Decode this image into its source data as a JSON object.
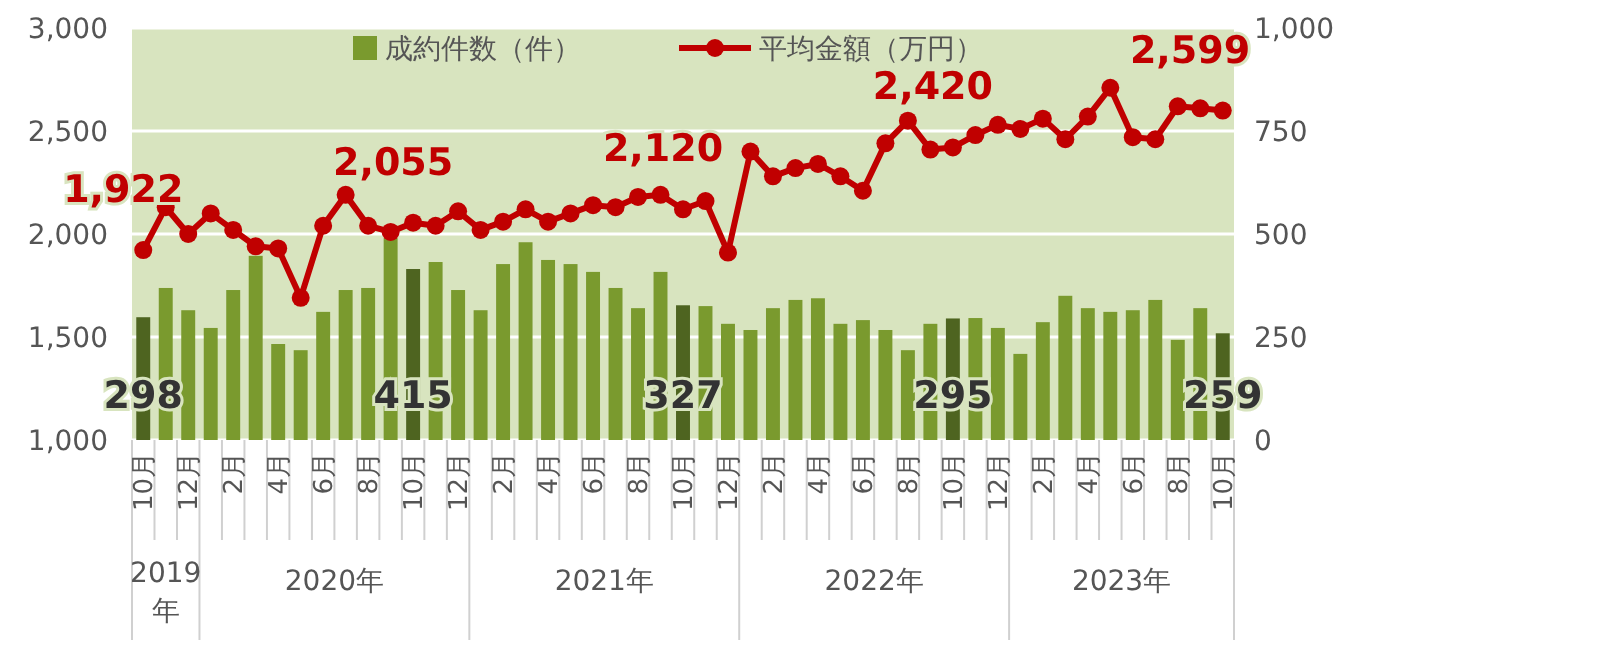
{
  "chart_data": {
    "type": "bar",
    "categories": [
      "10月",
      null,
      "12月",
      null,
      "2月",
      null,
      "4月",
      null,
      "6月",
      null,
      "8月",
      null,
      "10月",
      null,
      "12月",
      null,
      "2月",
      null,
      "4月",
      null,
      "6月",
      null,
      "8月",
      null,
      "10月",
      null,
      "12月",
      null,
      "2月",
      null,
      "4月",
      null,
      "6月",
      null,
      "8月",
      null,
      "10月",
      null,
      "12月",
      null,
      "2月",
      null,
      "4月",
      null,
      "6月",
      null,
      "8月",
      null,
      "10月"
    ],
    "series": [
      {
        "name": "成約件数（件）",
        "axis": "y2",
        "color": "#7a9a2e",
        "colors": [
          "#4e6420",
          "#7a9a2e",
          "#7a9a2e",
          "#7a9a2e",
          "#7a9a2e",
          "#7a9a2e",
          "#7a9a2e",
          "#7a9a2e",
          "#7a9a2e",
          "#7a9a2e",
          "#7a9a2e",
          "#7a9a2e",
          "#4e6420",
          "#7a9a2e",
          "#7a9a2e",
          "#7a9a2e",
          "#7a9a2e",
          "#7a9a2e",
          "#7a9a2e",
          "#7a9a2e",
          "#7a9a2e",
          "#7a9a2e",
          "#7a9a2e",
          "#7a9a2e",
          "#4e6420",
          "#7a9a2e",
          "#7a9a2e",
          "#7a9a2e",
          "#7a9a2e",
          "#7a9a2e",
          "#7a9a2e",
          "#7a9a2e",
          "#7a9a2e",
          "#7a9a2e",
          "#7a9a2e",
          "#7a9a2e",
          "#4e6420",
          "#7a9a2e",
          "#7a9a2e",
          "#7a9a2e",
          "#7a9a2e",
          "#7a9a2e",
          "#7a9a2e",
          "#7a9a2e",
          "#7a9a2e",
          "#7a9a2e",
          "#7a9a2e",
          "#7a9a2e",
          "#4e6420"
        ],
        "values": [
          298,
          369,
          315,
          272,
          364,
          447,
          233,
          218,
          311,
          364,
          369,
          490,
          415,
          432,
          364,
          315,
          427,
          480,
          437,
          427,
          408,
          369,
          320,
          408,
          327,
          325,
          282,
          267,
          320,
          340,
          344,
          282,
          291,
          267,
          218,
          282,
          295,
          296,
          272,
          209,
          286,
          350,
          320,
          311,
          315,
          340,
          243,
          320,
          259
        ],
        "value_labels": [
          "298",
          null,
          null,
          null,
          null,
          null,
          null,
          null,
          null,
          null,
          null,
          null,
          "415",
          null,
          null,
          null,
          null,
          null,
          null,
          null,
          null,
          null,
          null,
          null,
          "327",
          null,
          null,
          null,
          null,
          null,
          null,
          null,
          null,
          null,
          null,
          null,
          "295",
          null,
          null,
          null,
          null,
          null,
          null,
          null,
          null,
          null,
          null,
          null,
          "259"
        ]
      },
      {
        "name": "平均金額（万円）",
        "type": "line",
        "color": "#c00000",
        "marker": "circle",
        "values": [
          1922,
          2130,
          2000,
          2100,
          2020,
          1940,
          1930,
          1690,
          2040,
          2190,
          2040,
          2010,
          2055,
          2040,
          2110,
          2020,
          2060,
          2120,
          2060,
          2100,
          2140,
          2130,
          2180,
          2190,
          2120,
          2160,
          1910,
          2400,
          2280,
          2320,
          2340,
          2280,
          2210,
          2440,
          2550,
          2410,
          2420,
          2480,
          2530,
          2510,
          2560,
          2460,
          2570,
          2710,
          2470,
          2460,
          2620,
          2610,
          2599
        ],
        "value_labels": [
          "1,922",
          null,
          null,
          null,
          null,
          null,
          null,
          null,
          null,
          null,
          null,
          null,
          "2,055",
          null,
          null,
          null,
          null,
          null,
          null,
          null,
          null,
          null,
          null,
          null,
          "2,120",
          null,
          null,
          null,
          null,
          null,
          null,
          null,
          null,
          null,
          null,
          null,
          "2,420",
          null,
          null,
          null,
          null,
          null,
          null,
          null,
          null,
          null,
          null,
          null,
          "2,599"
        ]
      }
    ],
    "ylim": [
      1000,
      3000
    ],
    "yticks": [
      {
        "value": 1000,
        "label": "1,000"
      },
      {
        "value": 1500,
        "label": "1,500"
      },
      {
        "value": 2000,
        "label": "2,000"
      },
      {
        "value": 2500,
        "label": "2,500"
      },
      {
        "value": 3000,
        "label": "3,000"
      }
    ],
    "y2lim": [
      0,
      1000
    ],
    "y2ticks": [
      0,
      250,
      500,
      750,
      {
        "value": 1000,
        "label": "1,000"
      }
    ],
    "grid": "y",
    "legend": "top",
    "annotations": [
      "2019年",
      "2020年",
      "2021年",
      "2022年",
      "2023年"
    ]
  }
}
